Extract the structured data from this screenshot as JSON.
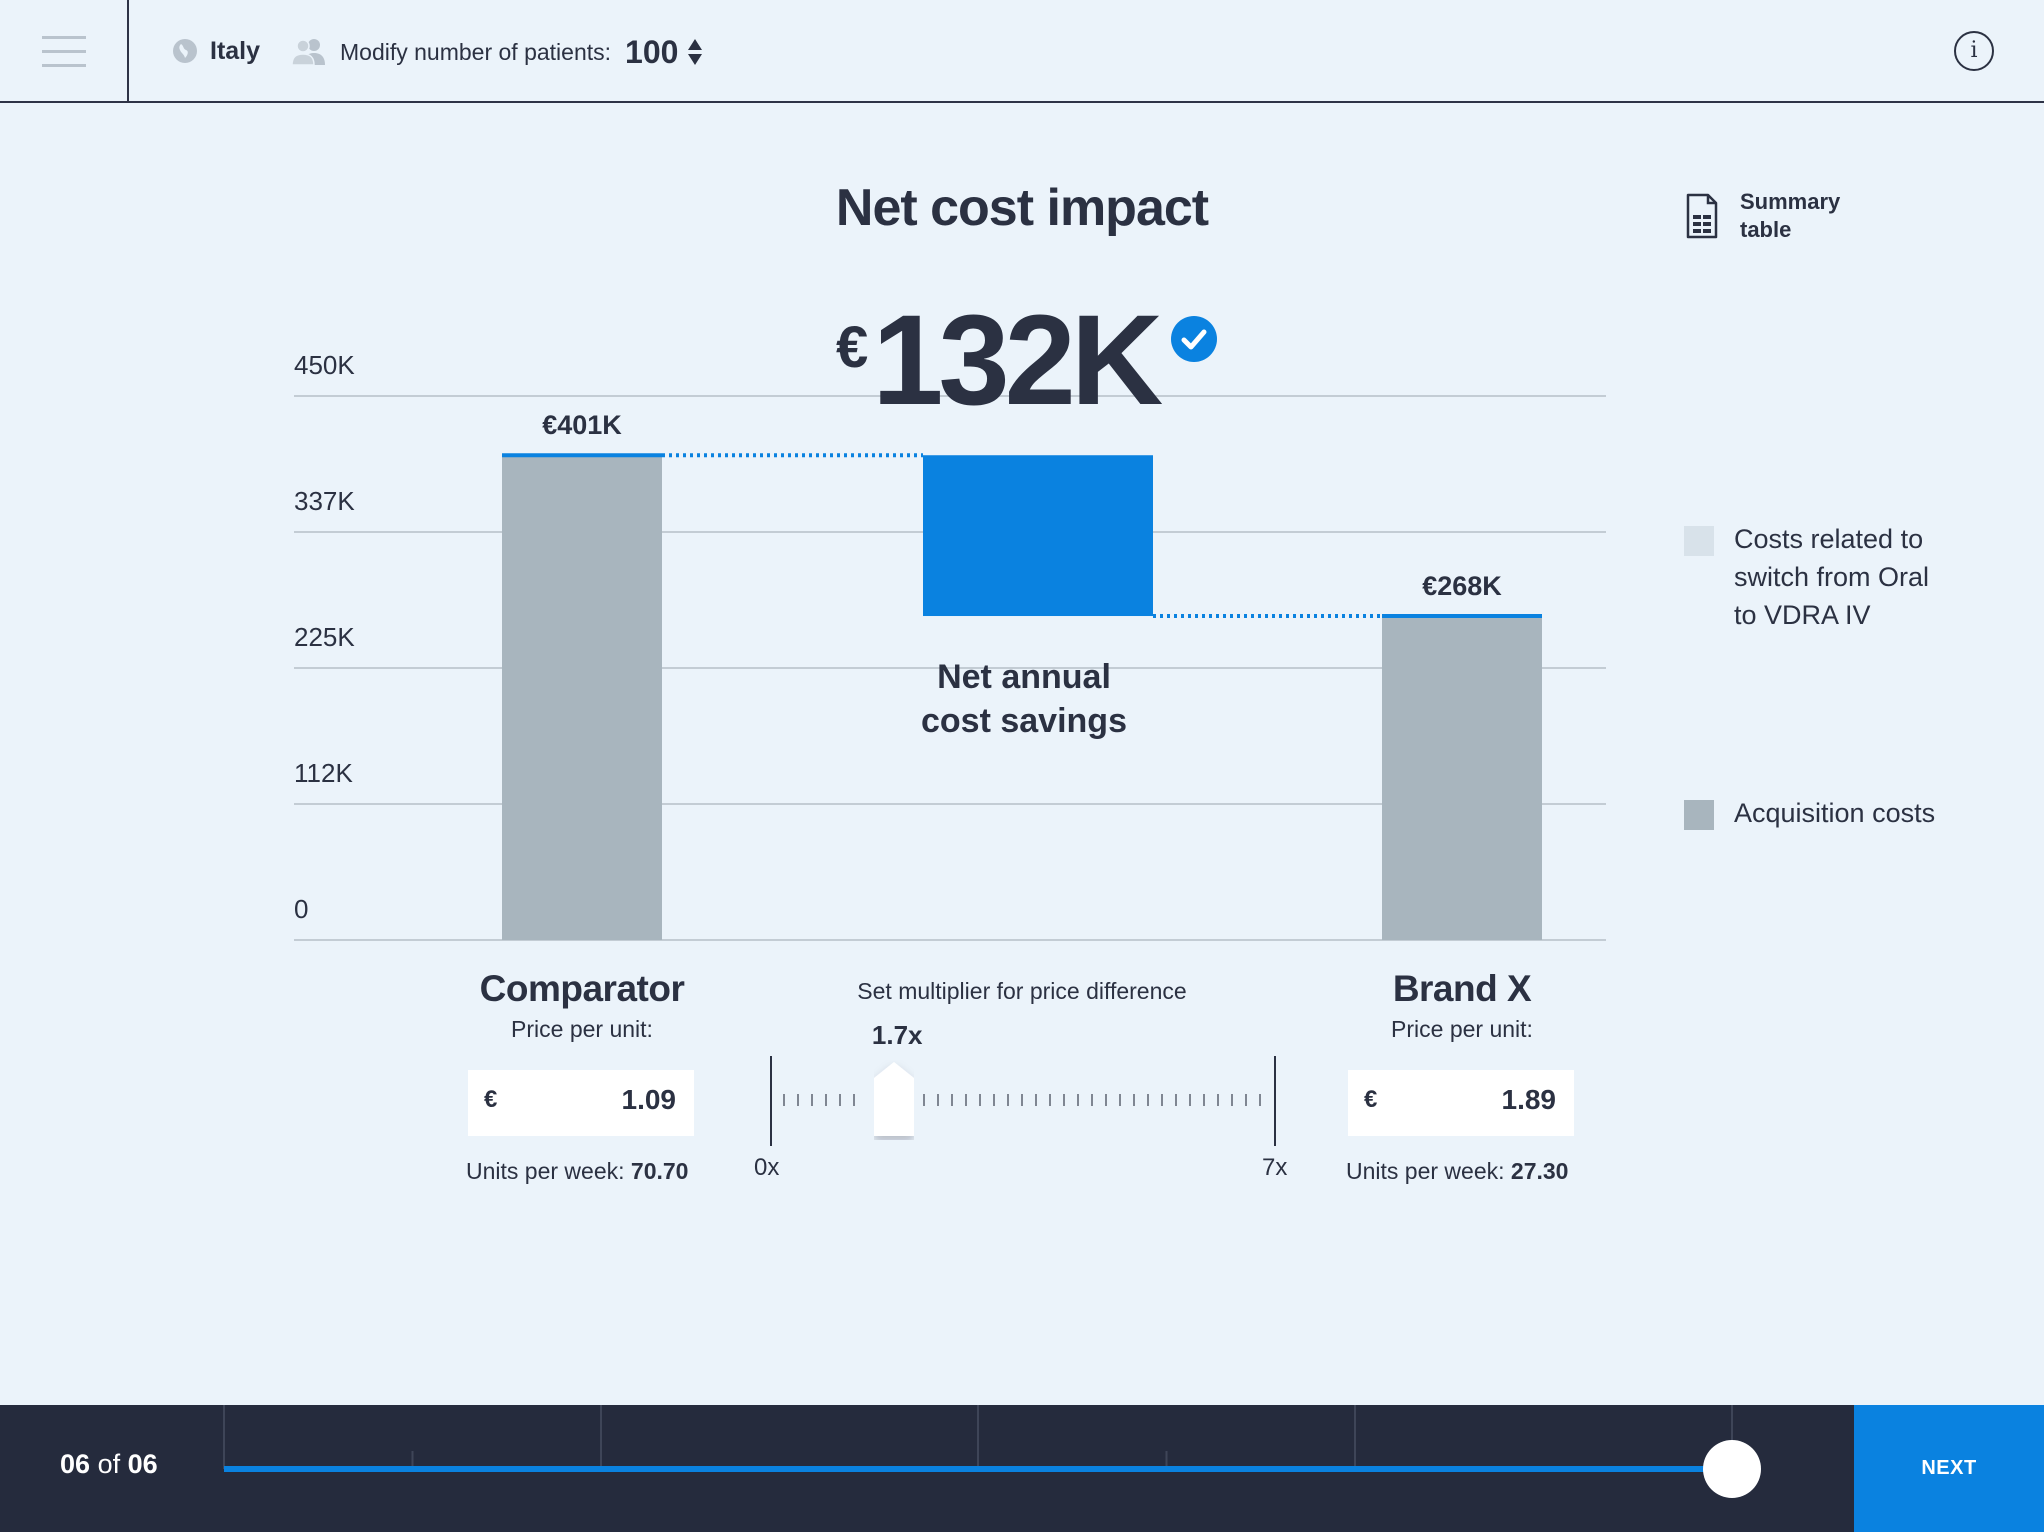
{
  "header": {
    "country": "Italy",
    "patients_label": "Modify number of patients:",
    "patients_value": "100"
  },
  "page_title": "Net cost impact",
  "summary_table_label": "Summary table",
  "headline": {
    "currency": "€",
    "value": "132K"
  },
  "chart_data": {
    "type": "bar",
    "title": "Net cost impact",
    "y_ticks": [
      "0",
      "112K",
      "225K",
      "337K",
      "450K"
    ],
    "ylim": [
      0,
      450
    ],
    "unit": "K",
    "categories": [
      "Comparator",
      "Net annual cost savings",
      "Brand X"
    ],
    "bars": [
      {
        "category": "Comparator",
        "value": 401,
        "label": "€401K",
        "kind": "total"
      },
      {
        "category": "Net annual cost savings",
        "from": 268,
        "to": 401,
        "kind": "delta",
        "label_lines": [
          "Net annual",
          "cost savings"
        ]
      },
      {
        "category": "Brand X",
        "value": 268,
        "label": "€268K",
        "kind": "total"
      }
    ],
    "legend": [
      {
        "label": "Costs related to switch from Oral to VDRA IV",
        "color": "#d8e2ea"
      },
      {
        "label": "Acquisition costs",
        "color": "#a8b5be"
      }
    ],
    "colors": {
      "total": "#a8b5be",
      "delta": "#0a82e0",
      "grid": "#c3ccd4",
      "accent_line": "#0a82e0"
    },
    "grid": true,
    "legend_position": "right"
  },
  "comparator": {
    "name": "Comparator",
    "price_label": "Price per unit:",
    "currency": "€",
    "price": "1.09",
    "units_label": "Units per week:",
    "units_value": "70.70"
  },
  "brand": {
    "name": "Brand X",
    "price_label": "Price per unit:",
    "currency": "€",
    "price": "1.89",
    "units_label": "Units per week:",
    "units_value": "27.30"
  },
  "multiplier": {
    "label": "Set multiplier for price difference",
    "value_text": "1.7x",
    "value": 1.7,
    "min_label": "0x",
    "max_label": "7x",
    "min": 0,
    "max": 7
  },
  "footer": {
    "current": "06",
    "of": "of",
    "total": "06",
    "next_label": "NEXT",
    "progress_fraction": 1.0
  },
  "icons": {
    "menu": "hamburger-icon",
    "country": "globe-icon",
    "patients": "people-icon",
    "info": "info-icon",
    "summary": "document-table-icon",
    "headline_badge": "check-circle-icon"
  }
}
